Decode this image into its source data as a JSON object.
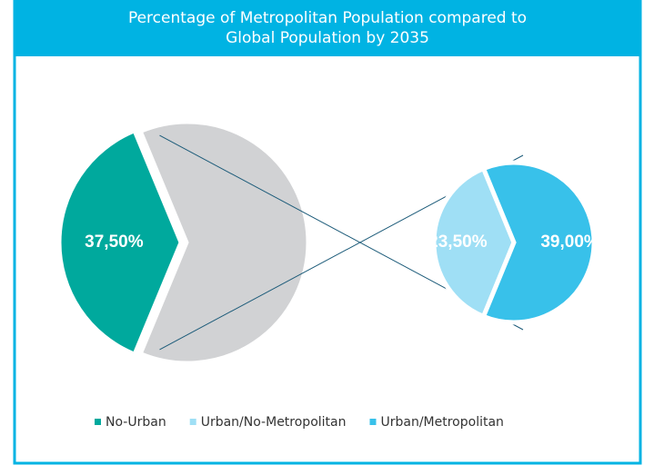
{
  "chart_data": {
    "type": "pie-of-pie",
    "title": [
      "Percentage of Metropolitan Population compared to",
      "Global Population by 2035"
    ],
    "categories": [
      "No-Urban",
      "Urban/No-Metropolitan",
      "Urban/Metropolitan"
    ],
    "values": [
      37.5,
      23.5,
      39.0
    ],
    "value_labels": [
      "37,50%",
      "23,50%",
      "39,00%"
    ],
    "colors": [
      "#00a99d",
      "#9fdff5",
      "#38c1ea"
    ],
    "split_index": 1,
    "aggregate_color": "#d1d2d4",
    "legend": "bottom"
  }
}
